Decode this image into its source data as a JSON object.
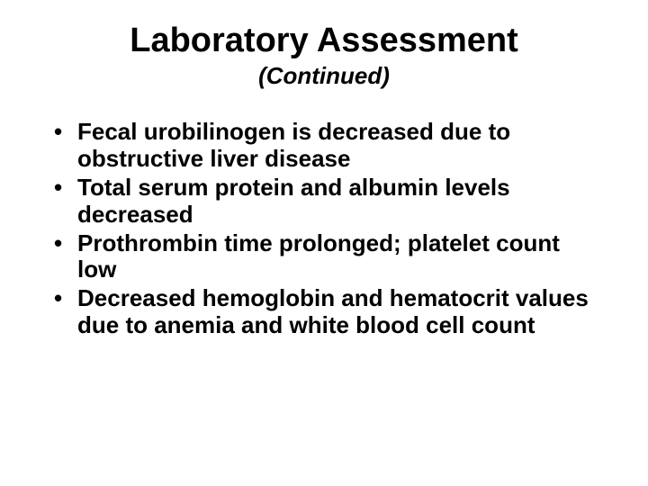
{
  "title": {
    "text": "Laboratory Assessment",
    "fontsize": 38,
    "color": "#000000"
  },
  "subtitle": {
    "text": "(Continued)",
    "fontsize": 26,
    "color": "#000000"
  },
  "bullets": {
    "fontsize": 26,
    "lineheight": 1.15,
    "color": "#000000",
    "items": [
      "Fecal urobilinogen is decreased due to obstructive liver disease",
      "Total serum protein and albumin levels decreased",
      " Prothrombin time prolonged; platelet count low",
      "Decreased hemoglobin and hematocrit values due to anemia and white blood cell count"
    ]
  },
  "background_color": "#ffffff"
}
